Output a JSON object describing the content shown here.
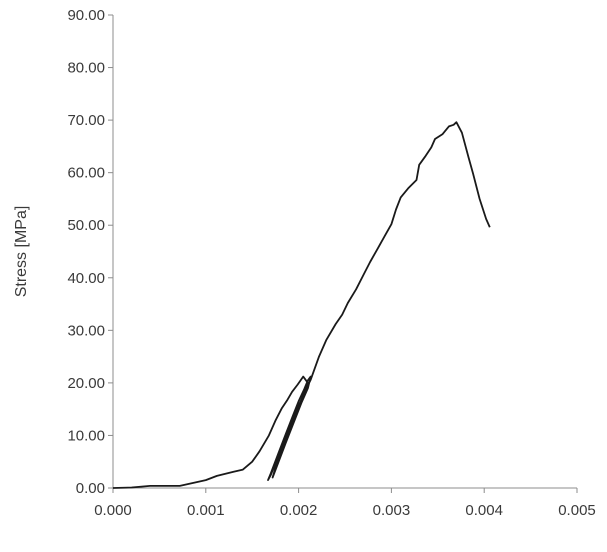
{
  "chart_data": {
    "type": "line",
    "title": "",
    "xlabel": "",
    "ylabel": "Stress [MPa]",
    "xlim": [
      0,
      0.005
    ],
    "ylim": [
      0,
      90
    ],
    "x_ticks": [
      "0.000",
      "0.001",
      "0.002",
      "0.003",
      "0.004",
      "0.005"
    ],
    "y_ticks": [
      "0.00",
      "10.00",
      "20.00",
      "30.00",
      "40.00",
      "50.00",
      "60.00",
      "70.00",
      "80.00",
      "90.00"
    ],
    "grid": false,
    "legend": "none",
    "line_color": "#1a1a1a",
    "series": [
      {
        "points": [
          [
            0.0,
            0.0
          ],
          [
            0.0002,
            0.1
          ],
          [
            0.0004,
            0.4
          ],
          [
            0.00072,
            0.4
          ],
          [
            0.001,
            1.5
          ],
          [
            0.00112,
            2.3
          ],
          [
            0.0013,
            3.1
          ],
          [
            0.0014,
            3.5
          ],
          [
            0.0015,
            5.0
          ],
          [
            0.00158,
            7.0
          ],
          [
            0.00168,
            10.0
          ],
          [
            0.00175,
            12.8
          ],
          [
            0.00182,
            15.2
          ],
          [
            0.00188,
            16.8
          ],
          [
            0.00193,
            18.3
          ],
          [
            0.00199,
            19.7
          ],
          [
            0.00205,
            21.2
          ],
          [
            0.0021,
            20.0
          ],
          [
            0.00206,
            18.0
          ],
          [
            0.002,
            15.5
          ],
          [
            0.00193,
            12.5
          ],
          [
            0.00185,
            9.0
          ],
          [
            0.00177,
            5.5
          ],
          [
            0.0017,
            2.5
          ],
          [
            0.00167,
            1.5
          ],
          [
            0.0017,
            2.8
          ],
          [
            0.00178,
            6.5
          ],
          [
            0.00186,
            10.2
          ],
          [
            0.00194,
            13.8
          ],
          [
            0.002,
            16.5
          ],
          [
            0.00206,
            18.8
          ],
          [
            0.0021,
            20.5
          ],
          [
            0.00213,
            21.2
          ],
          [
            0.0021,
            19.0
          ],
          [
            0.00203,
            16.2
          ],
          [
            0.00195,
            12.6
          ],
          [
            0.00186,
            8.5
          ],
          [
            0.00178,
            4.8
          ],
          [
            0.00172,
            2.0
          ],
          [
            0.00175,
            3.8
          ],
          [
            0.00183,
            8.0
          ],
          [
            0.00192,
            12.0
          ],
          [
            0.002,
            15.6
          ],
          [
            0.00207,
            18.4
          ],
          [
            0.00213,
            20.6
          ],
          [
            0.00222,
            25.0
          ],
          [
            0.0023,
            28.2
          ],
          [
            0.0024,
            31.2
          ],
          [
            0.00247,
            33.0
          ],
          [
            0.00253,
            35.2
          ],
          [
            0.00262,
            37.8
          ],
          [
            0.0027,
            40.6
          ],
          [
            0.00277,
            43.0
          ],
          [
            0.00285,
            45.5
          ],
          [
            0.00293,
            48.0
          ],
          [
            0.003,
            50.2
          ],
          [
            0.00305,
            53.0
          ],
          [
            0.0031,
            55.3
          ],
          [
            0.00318,
            57.0
          ],
          [
            0.00327,
            58.6
          ],
          [
            0.0033,
            61.5
          ],
          [
            0.00337,
            63.2
          ],
          [
            0.00343,
            64.8
          ],
          [
            0.00347,
            66.4
          ],
          [
            0.00355,
            67.3
          ],
          [
            0.00362,
            68.8
          ],
          [
            0.00367,
            69.1
          ],
          [
            0.0037,
            69.6
          ],
          [
            0.00376,
            67.6
          ],
          [
            0.00383,
            63.0
          ],
          [
            0.00388,
            59.8
          ],
          [
            0.00395,
            55.0
          ],
          [
            0.00402,
            51.2
          ],
          [
            0.00406,
            49.6
          ]
        ]
      }
    ]
  }
}
